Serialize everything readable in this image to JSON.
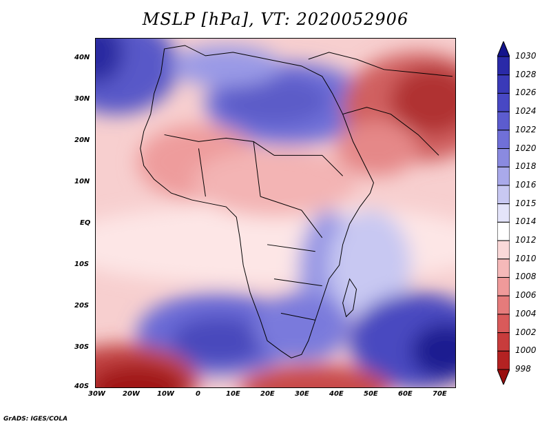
{
  "title": "MSLP [hPa], VT: 2020052906",
  "credit": "GrADS: IGES/COLA",
  "axes": {
    "lon_labels": [
      "30W",
      "20W",
      "10W",
      "0",
      "10E",
      "20E",
      "30E",
      "40E",
      "50E",
      "60E",
      "70E"
    ],
    "lat_labels": [
      "40N",
      "30N",
      "20N",
      "10N",
      "EQ",
      "10S",
      "20S",
      "30S",
      "40S"
    ]
  },
  "colorbar": {
    "levels": [
      "1030",
      "1028",
      "1026",
      "1024",
      "1022",
      "1020",
      "1018",
      "1016",
      "1015",
      "1014",
      "1012",
      "1010",
      "1008",
      "1006",
      "1004",
      "1002",
      "1000",
      "998"
    ],
    "colors": [
      "#14148c",
      "#2a2aa8",
      "#3a3ab8",
      "#4848c4",
      "#5c5ccf",
      "#7070d8",
      "#8a8ae0",
      "#a9a9ea",
      "#c8c8f2",
      "#e4e4fa",
      "#ffffff",
      "#fbd9d9",
      "#f5b9b9",
      "#ef9a9a",
      "#e57b7b",
      "#d95a5a",
      "#c83c3c",
      "#b42222",
      "#9a0e0e"
    ]
  }
}
